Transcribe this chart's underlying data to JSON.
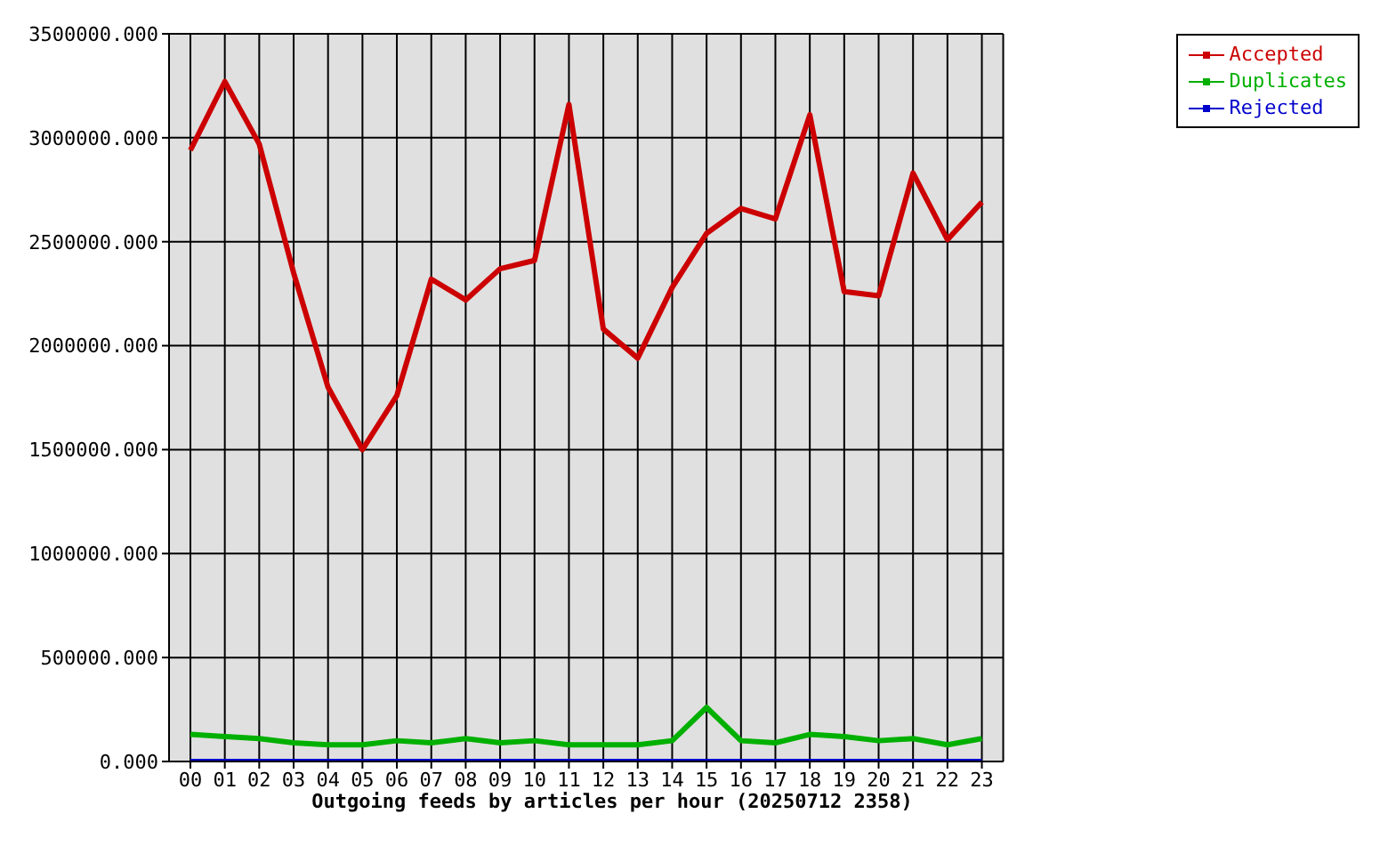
{
  "chart_data": {
    "type": "line",
    "title": "Outgoing feeds by articles per hour (20250712 2358)",
    "categories": [
      "00",
      "01",
      "02",
      "03",
      "04",
      "05",
      "06",
      "07",
      "08",
      "09",
      "10",
      "11",
      "12",
      "13",
      "14",
      "15",
      "16",
      "17",
      "18",
      "19",
      "20",
      "21",
      "22",
      "23"
    ],
    "series": [
      {
        "name": "Accepted",
        "color": "#cc0000",
        "values": [
          2940000,
          3270000,
          2970000,
          2350000,
          1800000,
          1500000,
          1760000,
          2320000,
          2220000,
          2370000,
          2410000,
          3160000,
          2080000,
          1940000,
          2280000,
          2540000,
          2660000,
          2610000,
          3110000,
          2260000,
          2240000,
          2830000,
          2510000,
          2690000
        ]
      },
      {
        "name": "Duplicates",
        "color": "#00b000",
        "values": [
          130000,
          120000,
          110000,
          90000,
          80000,
          80000,
          100000,
          90000,
          110000,
          90000,
          100000,
          80000,
          80000,
          80000,
          100000,
          260000,
          100000,
          90000,
          130000,
          120000,
          100000,
          110000,
          80000,
          110000
        ]
      },
      {
        "name": "Rejected",
        "color": "#0000cc",
        "values": [
          0,
          0,
          0,
          0,
          0,
          0,
          0,
          0,
          0,
          0,
          0,
          0,
          0,
          0,
          0,
          0,
          0,
          0,
          0,
          0,
          0,
          0,
          0,
          0
        ]
      }
    ],
    "ylim": [
      0,
      3500000
    ],
    "yticks": [
      {
        "value": 0,
        "label": "0.000"
      },
      {
        "value": 500000,
        "label": "500000.000"
      },
      {
        "value": 1000000,
        "label": "1000000.000"
      },
      {
        "value": 1500000,
        "label": "1500000.000"
      },
      {
        "value": 2000000,
        "label": "2000000.000"
      },
      {
        "value": 2500000,
        "label": "2500000.000"
      },
      {
        "value": 3000000,
        "label": "3000000.000"
      },
      {
        "value": 3500000,
        "label": "3500000.000"
      }
    ],
    "grid": true,
    "legend": "top right",
    "marker": "none",
    "line_style": "solid"
  }
}
